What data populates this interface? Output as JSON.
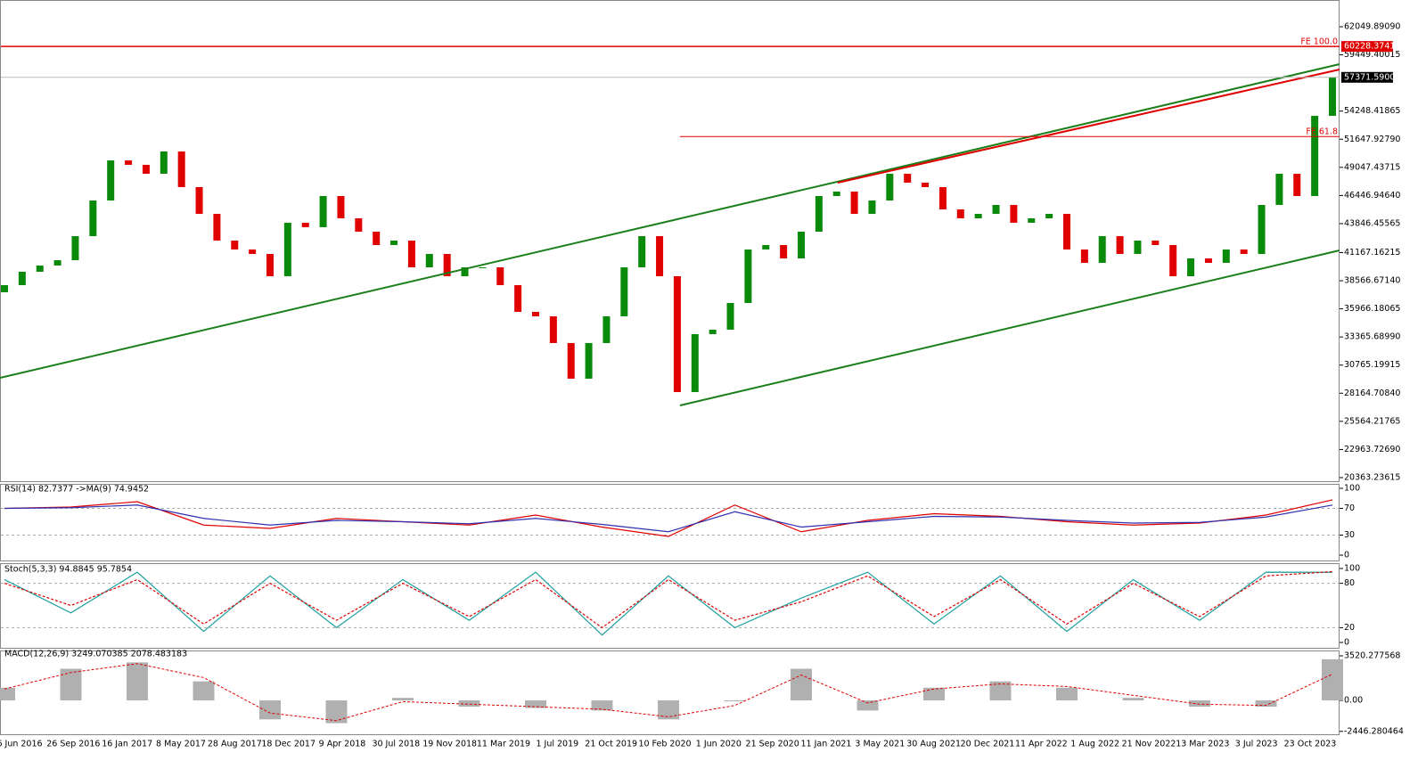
{
  "chart_data": [
    {
      "type": "candlestick",
      "up_color": "#0a8a0a",
      "down_color": "#e00000",
      "x_labels": [
        "6 Jun 2016",
        "26 Sep 2016",
        "16 Jan 2017",
        "8 May 2017",
        "28 Aug 2017",
        "18 Dec 2017",
        "9 Apr 2018",
        "30 Jul 2018",
        "19 Nov 2018",
        "11 Mar 2019",
        "1 Jul 2019",
        "21 Oct 2019",
        "10 Feb 2020",
        "1 Jun 2020",
        "21 Sep 2020",
        "11 Jan 2021",
        "3 May 2021",
        "30 Aug 2021",
        "20 Dec 2021",
        "11 Apr 2022",
        "1 Aug 2022",
        "21 Nov 2022",
        "13 Mar 2023",
        "3 Jul 2023",
        "23 Oct 2023"
      ],
      "open": [
        37500,
        38159,
        39395,
        39972,
        40466,
        42690,
        45985,
        49693,
        49281,
        48457,
        50516,
        47221,
        44750,
        42278,
        41455,
        41043,
        38983,
        43926,
        43514,
        46397,
        44338,
        43102,
        41866,
        42278,
        39807,
        41043,
        38983,
        39807,
        39807,
        38159,
        35688,
        35276,
        32805,
        29509,
        32805,
        35276,
        39807,
        42690,
        38983,
        28274,
        33628,
        34040,
        36512,
        41455,
        41866,
        40631,
        43102,
        46397,
        46809,
        44750,
        45985,
        48457,
        47633,
        47221,
        45162,
        44338,
        44750,
        45574,
        43926,
        44338,
        44750,
        41455,
        40219,
        42690,
        41043,
        42278,
        41866,
        38983,
        40631,
        40219,
        41455,
        41043,
        45574,
        48457,
        46397,
        53812
      ],
      "close": [
        38159,
        39395,
        39972,
        40466,
        42690,
        45985,
        49693,
        49281,
        48457,
        50516,
        47221,
        44750,
        42278,
        41455,
        41043,
        38983,
        43926,
        43514,
        46397,
        44338,
        43102,
        41866,
        42278,
        39807,
        41043,
        38983,
        39807,
        39807,
        38159,
        35688,
        35276,
        32805,
        29509,
        32805,
        35276,
        39807,
        42690,
        38983,
        28274,
        33628,
        34040,
        36512,
        41455,
        41866,
        40631,
        43102,
        46397,
        46809,
        44750,
        45985,
        48457,
        47633,
        47221,
        45162,
        44338,
        44750,
        45574,
        43926,
        44338,
        44750,
        41455,
        40219,
        42690,
        41043,
        42278,
        41866,
        38983,
        40631,
        40219,
        41455,
        41043,
        45574,
        48457,
        46397,
        53812,
        57371.59
      ],
      "ylim": [
        20033,
        64521
      ],
      "yticks": [
        {
          "value": 62049.8909,
          "label": "62049.89090"
        },
        {
          "value": 59449.40015,
          "label": "59449.40015"
        },
        {
          "value": 54248.41865,
          "label": "54248.41865"
        },
        {
          "value": 51647.9279,
          "label": "51647.92790"
        },
        {
          "value": 49047.43715,
          "label": "49047.43715"
        },
        {
          "value": 46446.9464,
          "label": "46446.94640"
        },
        {
          "value": 43846.45565,
          "label": "43846.45565"
        },
        {
          "value": 41167.16215,
          "label": "41167.16215"
        },
        {
          "value": 38566.6714,
          "label": "38566.67140"
        },
        {
          "value": 35966.18065,
          "label": "35966.18065"
        },
        {
          "value": 33365.6899,
          "label": "33365.68990"
        },
        {
          "value": 30765.19915,
          "label": "30765.19915"
        },
        {
          "value": 28164.7084,
          "label": "28164.70840"
        },
        {
          "value": 25564.21765,
          "label": "25564.21765"
        },
        {
          "value": 22963.7269,
          "label": "22963.72690"
        },
        {
          "value": 20363.23615,
          "label": "20363.23615"
        }
      ],
      "levels": [
        {
          "name": "FE 100.0",
          "value": 60228.3741,
          "value_label": "60228.37410",
          "color": "#e00000"
        },
        {
          "name": "FE 61.8",
          "value": 51900,
          "color": "#e00000",
          "start": 38.15
        }
      ],
      "last_price": {
        "value": 57371.59,
        "label": "57371.59000"
      },
      "trendlines": [
        {
          "color": "#1a7f1a",
          "x": [
            -0.25,
            75.4
          ],
          "y": [
            29592,
            58590
          ]
        },
        {
          "color": "#1a7f1a",
          "x": [
            38.15,
            75.4
          ],
          "y": [
            27038,
            41372
          ]
        },
        {
          "color": "#e00000",
          "x": [
            47.06,
            75.4
          ],
          "y": [
            47633,
            58095
          ]
        }
      ]
    },
    {
      "type": "line",
      "title": "RSI(14) 82.7377 ->MA(9) 74.9452",
      "ylim": [
        0,
        100
      ],
      "yticks": [
        0,
        30,
        70,
        100
      ],
      "levels": [
        30,
        70
      ],
      "series": [
        {
          "color": "#e00000",
          "values": [
            70,
            72,
            80,
            45,
            40,
            55,
            50,
            45,
            60,
            42,
            28,
            75,
            35,
            52,
            62,
            58,
            50,
            45,
            48,
            60,
            82.7377
          ]
        },
        {
          "color": "#3030b0",
          "values": [
            70,
            71,
            75,
            55,
            45,
            52,
            50,
            47,
            55,
            46,
            35,
            65,
            42,
            50,
            58,
            57,
            52,
            48,
            49,
            57,
            74.9452
          ]
        }
      ]
    },
    {
      "type": "line",
      "title": "Stoch(5,3,3) 94.8845 95.7854",
      "ylim": [
        0,
        100
      ],
      "yticks": [
        0,
        20,
        80,
        100
      ],
      "levels": [
        20,
        80
      ],
      "series": [
        {
          "color": "#20a0a0",
          "values": [
            85,
            40,
            95,
            15,
            90,
            20,
            85,
            30,
            95,
            10,
            90,
            20,
            60,
            95,
            25,
            90,
            15,
            85,
            30,
            95,
            94.8845
          ]
        },
        {
          "color": "#e00000",
          "dashed": true,
          "values": [
            80,
            50,
            85,
            25,
            80,
            30,
            80,
            35,
            85,
            20,
            85,
            30,
            55,
            90,
            35,
            85,
            25,
            80,
            35,
            90,
            95.7854
          ]
        }
      ]
    },
    {
      "type": "bar",
      "title": "MACD(12,26,9) 3249.070385 2078.483183",
      "ylim": [
        -2675,
        3731
      ],
      "yticks": [
        {
          "value": -2446.280464,
          "label": "-2446.280464"
        },
        {
          "value": 0,
          "label": "0.00"
        },
        {
          "value": 3520.277568,
          "label": "3520.277568"
        }
      ],
      "series": [
        {
          "color": "#b0b0b0",
          "values": [
            1000,
            2500,
            3000,
            1500,
            -1500,
            -1800,
            200,
            -500,
            -600,
            -800,
            -1500,
            0,
            2500,
            -800,
            1000,
            1500,
            1000,
            200,
            -500,
            -500,
            3249.070385
          ]
        },
        {
          "color": "#e00000",
          "dashed": true,
          "values": [
            900,
            2200,
            2900,
            1800,
            -1000,
            -1600,
            -100,
            -300,
            -500,
            -700,
            -1300,
            -400,
            2000,
            -200,
            900,
            1300,
            1100,
            400,
            -300,
            -400,
            2078.483183
          ]
        }
      ]
    }
  ]
}
